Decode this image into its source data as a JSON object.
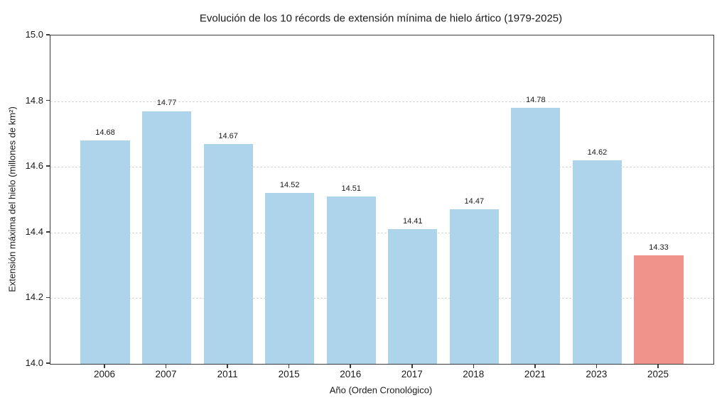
{
  "chart_data": {
    "type": "bar",
    "title": "Evolución de los 10 récords de extensión mínima de hielo ártico (1979-2025)",
    "xlabel": "Año (Orden Cronológico)",
    "ylabel": "Extensión máxima del hielo (millones de km²)",
    "categories": [
      "2006",
      "2007",
      "2011",
      "2015",
      "2016",
      "2017",
      "2018",
      "2021",
      "2023",
      "2025"
    ],
    "values": [
      14.68,
      14.77,
      14.67,
      14.52,
      14.51,
      14.41,
      14.47,
      14.78,
      14.62,
      14.33
    ],
    "value_labels": [
      "14.68",
      "14.77",
      "14.67",
      "14.52",
      "14.51",
      "14.41",
      "14.47",
      "14.78",
      "14.62",
      "14.33"
    ],
    "ylim": [
      14.0,
      15.0
    ],
    "yticks": [
      14.0,
      14.2,
      14.4,
      14.6,
      14.8,
      15.0
    ],
    "ytick_labels": [
      "14.0",
      "14.2",
      "14.4",
      "14.6",
      "14.8",
      "15.0"
    ],
    "grid": "horizontal-dashed",
    "legend": "none",
    "bar_color": "#aed4ec",
    "highlight_color": "#f0948b",
    "highlight_index": 9
  }
}
